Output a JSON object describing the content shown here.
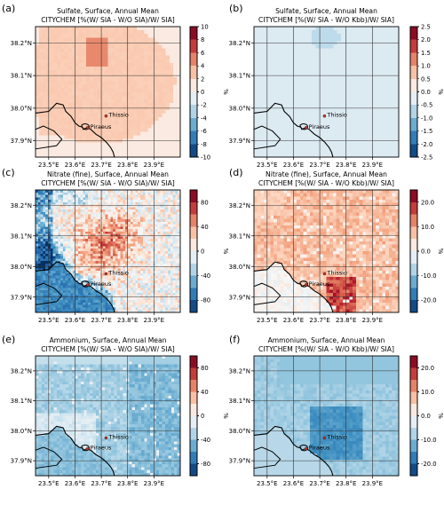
{
  "figure": {
    "panel_letters": [
      "(a)",
      "(b)",
      "(c)",
      "(d)",
      "(e)",
      "(f)"
    ],
    "x_ticks": [
      "23.5°E",
      "23.6°E",
      "23.7°E",
      "23.8°E",
      "23.9°E"
    ],
    "y_ticks": [
      "38.2°N",
      "38.1°N",
      "38.0°N",
      "37.9°N"
    ],
    "places": [
      "Thissio",
      "Piraeus"
    ],
    "colorbar_unit": "%"
  },
  "chart_data": [
    {
      "type": "heatmap",
      "panel": "(a)",
      "title": "Sulfate, Surface, Annual Mean",
      "subtitle": "CITYCHEM [%(W/ SIA - W/O SIA)/W/ SIA]",
      "colorbar_ticks": [
        "10",
        "8",
        "6",
        "4",
        "2",
        "0",
        "-2",
        "-4",
        "-6",
        "-8",
        "-10"
      ],
      "clim": [
        -10,
        10
      ],
      "unit": "%",
      "xlim": [
        23.45,
        24.0
      ],
      "ylim": [
        37.85,
        38.25
      ],
      "colors": {
        "dominant": "#fbd6c0",
        "hotspot": "#e3856a",
        "outside": "#fbe7dc"
      }
    },
    {
      "type": "heatmap",
      "panel": "(b)",
      "title": "Sulfate, Surface, Annual Mean",
      "subtitle": "CITYCHEM [%(W/ SIA - W/O Kbb)/W/ SIA]",
      "colorbar_ticks": [
        "2.5",
        "2.0",
        "1.5",
        "1.0",
        "0.5",
        "0.0",
        "-0.5",
        "-1.0",
        "-1.5",
        "-2.0",
        "-2.5"
      ],
      "clim": [
        -2.5,
        2.5
      ],
      "unit": "%",
      "xlim": [
        23.45,
        24.0
      ],
      "ylim": [
        37.85,
        38.25
      ],
      "colors": {
        "dominant": "#e4eef6",
        "hotspot": "#b9d6ec"
      }
    },
    {
      "type": "heatmap",
      "panel": "(c)",
      "title": "Nitrate (fine), Surface, Annual Mean",
      "subtitle": "CITYCHEM [%(W/ SIA - W/O SIA)/W/ SIA]",
      "colorbar_ticks": [
        "80",
        "40",
        "0",
        "-40",
        "-80"
      ],
      "clim": [
        -100,
        100
      ],
      "unit": "%",
      "xlim": [
        23.45,
        24.0
      ],
      "ylim": [
        37.85,
        38.25
      ],
      "colors": {
        "positive": "#e79a7c",
        "neutral": "#f4f4f4",
        "negative": "#2b6fae"
      }
    },
    {
      "type": "heatmap",
      "panel": "(d)",
      "title": "Nitrate (fine), Surface, Annual Mean",
      "subtitle": "CITYCHEM [%(W/ SIA - W/O Kbb)/W/ SIA]",
      "colorbar_ticks": [
        "20.0",
        "10.0",
        "0.0",
        "-10.0",
        "-20.0"
      ],
      "clim": [
        -25,
        25
      ],
      "unit": "%",
      "xlim": [
        23.45,
        24.0
      ],
      "ylim": [
        37.85,
        38.25
      ],
      "colors": {
        "dominant": "#e4866a",
        "peak": "#b2182b",
        "low": "#f8d7c6"
      }
    },
    {
      "type": "heatmap",
      "panel": "(e)",
      "title": "Ammonium, Surface, Annual Mean",
      "subtitle": "CITYCHEM [%(W/ SIA - W/O SIA)/W/ SIA]",
      "colorbar_ticks": [
        "80",
        "40",
        "0",
        "-40",
        "-80"
      ],
      "clim": [
        -100,
        100
      ],
      "unit": "%",
      "xlim": [
        23.45,
        24.0
      ],
      "ylim": [
        37.85,
        38.25
      ],
      "colors": {
        "dominant": "#8fbee0",
        "light": "#d2e4f1",
        "dark": "#4f8fc4"
      }
    },
    {
      "type": "heatmap",
      "panel": "(f)",
      "title": "Ammonium, Surface, Annual Mean",
      "subtitle": "CITYCHEM [%(W/ SIA - W/O Kbb)/W/ SIA]",
      "colorbar_ticks": [
        "20.0",
        "10.0",
        "0.0",
        "-10.0",
        "-20.0"
      ],
      "clim": [
        -25,
        25
      ],
      "unit": "%",
      "xlim": [
        23.45,
        24.0
      ],
      "ylim": [
        37.85,
        38.25
      ],
      "colors": {
        "dominant": "#7fb2da",
        "dark": "#3f7fba",
        "light": "#b8d5ea"
      }
    }
  ]
}
